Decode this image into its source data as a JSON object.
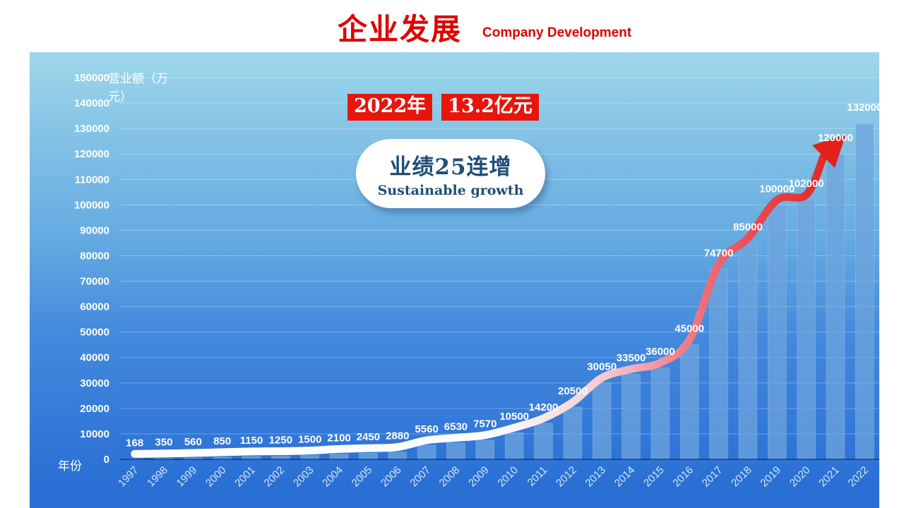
{
  "header": {
    "title": "企业发展",
    "subtitle": "Company Development"
  },
  "callout": {
    "year": "2022年",
    "amount": "13.2亿元"
  },
  "bubble": {
    "headline": "业绩25连增",
    "subline": "Sustainable growth"
  },
  "chart_data": {
    "type": "bar",
    "title": "企业发展 Company Development",
    "ylabel": "营业额（万元）",
    "xlabel": "年份",
    "categories": [
      "1997",
      "1998",
      "1999",
      "2000",
      "2001",
      "2002",
      "2003",
      "2004",
      "2005",
      "2006",
      "2007",
      "2008",
      "2009",
      "2010",
      "2011",
      "2012",
      "2013",
      "2014",
      "2015",
      "2016",
      "2017",
      "2018",
      "2019",
      "2020",
      "2021",
      "2022"
    ],
    "values": [
      168,
      350,
      560,
      850,
      1150,
      1250,
      1500,
      2100,
      2450,
      2880,
      5560,
      6530,
      7570,
      10500,
      14200,
      20500,
      30050,
      33500,
      36000,
      45000,
      74700,
      85000,
      100000,
      102000,
      120000,
      132000
    ],
    "ylim": [
      0,
      150000
    ],
    "ytick_step": 10000,
    "grid": true,
    "legend": false,
    "annotation": "white-to-red rising trend arrow over bars"
  },
  "colors": {
    "title-red": "#e00000",
    "badge-red": "#e8150c",
    "badge-text": "#ffffff",
    "bubble-text": "#1f4e79",
    "bar-fill": "#6ea5dd",
    "bg-top": "#9ed7ea",
    "bg-mid": "#4389dd",
    "bg-bottom": "#2a6fd4",
    "arrow-red": "#e2211c",
    "tick-text": "#ffffff",
    "year-text": "#d5e9f8",
    "baseline": "rgba(10,35,80,0.55)",
    "gridline": "rgba(255,255,255,0.3)"
  }
}
